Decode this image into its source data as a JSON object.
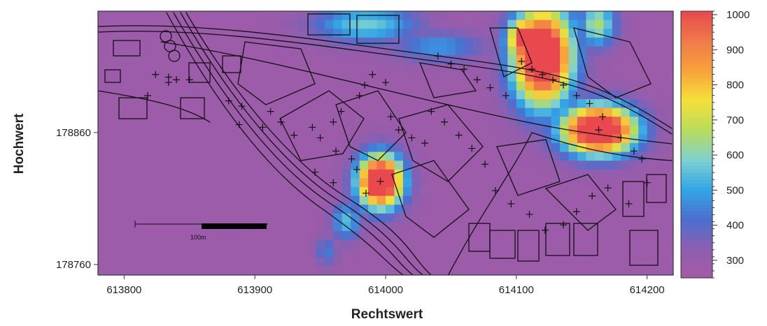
{
  "chart_data": {
    "type": "heatmap",
    "title": "",
    "xlabel": "Rechtswert",
    "ylabel": "Hochwert",
    "xlim": [
      613780,
      614220
    ],
    "ylim": [
      178752,
      178952
    ],
    "x_ticks": [
      613800,
      613900,
      614000,
      614100,
      614200
    ],
    "y_ticks": [
      178760,
      178860
    ],
    "colorbar": {
      "min": 250,
      "max": 1010,
      "ticks": [
        300,
        400,
        500,
        600,
        700,
        800,
        900,
        1000
      ],
      "colors": [
        "#a55aa5",
        "#8c5fb0",
        "#4a6fcf",
        "#33a6e6",
        "#7fd1cf",
        "#b8dc5a",
        "#f4e03a",
        "#f8a23a",
        "#f07a4a",
        "#e8484e"
      ]
    },
    "background_value": 280,
    "hotspots": [
      {
        "x": 613996,
        "y": 178823,
        "peak": 1000,
        "sx": 12,
        "sy": 14
      },
      {
        "x": 613970,
        "y": 178793,
        "peak": 480,
        "sx": 8,
        "sy": 10
      },
      {
        "x": 614120,
        "y": 178918,
        "peak": 1000,
        "sx": 16,
        "sy": 26
      },
      {
        "x": 614108,
        "y": 178930,
        "peak": 950,
        "sx": 10,
        "sy": 12
      },
      {
        "x": 614163,
        "y": 178862,
        "peak": 1000,
        "sx": 20,
        "sy": 13
      },
      {
        "x": 613985,
        "y": 178942,
        "peak": 500,
        "sx": 28,
        "sy": 10
      },
      {
        "x": 614040,
        "y": 178925,
        "peak": 430,
        "sx": 25,
        "sy": 8
      },
      {
        "x": 614162,
        "y": 178942,
        "peak": 560,
        "sx": 10,
        "sy": 12
      },
      {
        "x": 613955,
        "y": 178770,
        "peak": 400,
        "sx": 6,
        "sy": 8
      }
    ],
    "markers": [
      [
        613824,
        178904
      ],
      [
        613834,
        178902
      ],
      [
        613840,
        178900
      ],
      [
        613834,
        178898
      ],
      [
        613850,
        178900
      ],
      [
        613818,
        178888
      ],
      [
        613880,
        178884
      ],
      [
        613890,
        178880
      ],
      [
        613888,
        178866
      ],
      [
        613906,
        178864
      ],
      [
        613912,
        178876
      ],
      [
        613920,
        178868
      ],
      [
        613930,
        178858
      ],
      [
        613944,
        178864
      ],
      [
        613950,
        178856
      ],
      [
        613960,
        178868
      ],
      [
        613966,
        178876
      ],
      [
        613980,
        178888
      ],
      [
        613984,
        178896
      ],
      [
        613990,
        178904
      ],
      [
        614000,
        178898
      ],
      [
        613962,
        178846
      ],
      [
        613974,
        178840
      ],
      [
        613978,
        178832
      ],
      [
        613946,
        178830
      ],
      [
        613960,
        178822
      ],
      [
        613985,
        178814
      ],
      [
        613996,
        178823
      ],
      [
        614004,
        178872
      ],
      [
        614010,
        178862
      ],
      [
        614020,
        178856
      ],
      [
        614030,
        178852
      ],
      [
        614035,
        178876
      ],
      [
        614045,
        178868
      ],
      [
        614056,
        178858
      ],
      [
        614066,
        178848
      ],
      [
        614076,
        178836
      ],
      [
        614040,
        178918
      ],
      [
        614050,
        178912
      ],
      [
        614060,
        178908
      ],
      [
        614070,
        178900
      ],
      [
        614080,
        178894
      ],
      [
        614092,
        178888
      ],
      [
        614104,
        178914
      ],
      [
        614112,
        178908
      ],
      [
        614120,
        178904
      ],
      [
        614128,
        178900
      ],
      [
        614136,
        178896
      ],
      [
        614146,
        178888
      ],
      [
        614156,
        178882
      ],
      [
        614166,
        178872
      ],
      [
        614163,
        178862
      ],
      [
        614180,
        178856
      ],
      [
        614190,
        178846
      ],
      [
        614196,
        178840
      ],
      [
        614146,
        178800
      ],
      [
        614158,
        178812
      ],
      [
        614170,
        178818
      ],
      [
        614186,
        178806
      ],
      [
        614200,
        178822
      ],
      [
        614122,
        178786
      ],
      [
        614136,
        178790
      ],
      [
        614096,
        178806
      ],
      [
        614110,
        178798
      ],
      [
        614084,
        178816
      ]
    ],
    "scale_bar": {
      "label": "100m"
    }
  },
  "axis": {
    "xlabel": "Rechtswert",
    "ylabel": "Hochwert"
  }
}
